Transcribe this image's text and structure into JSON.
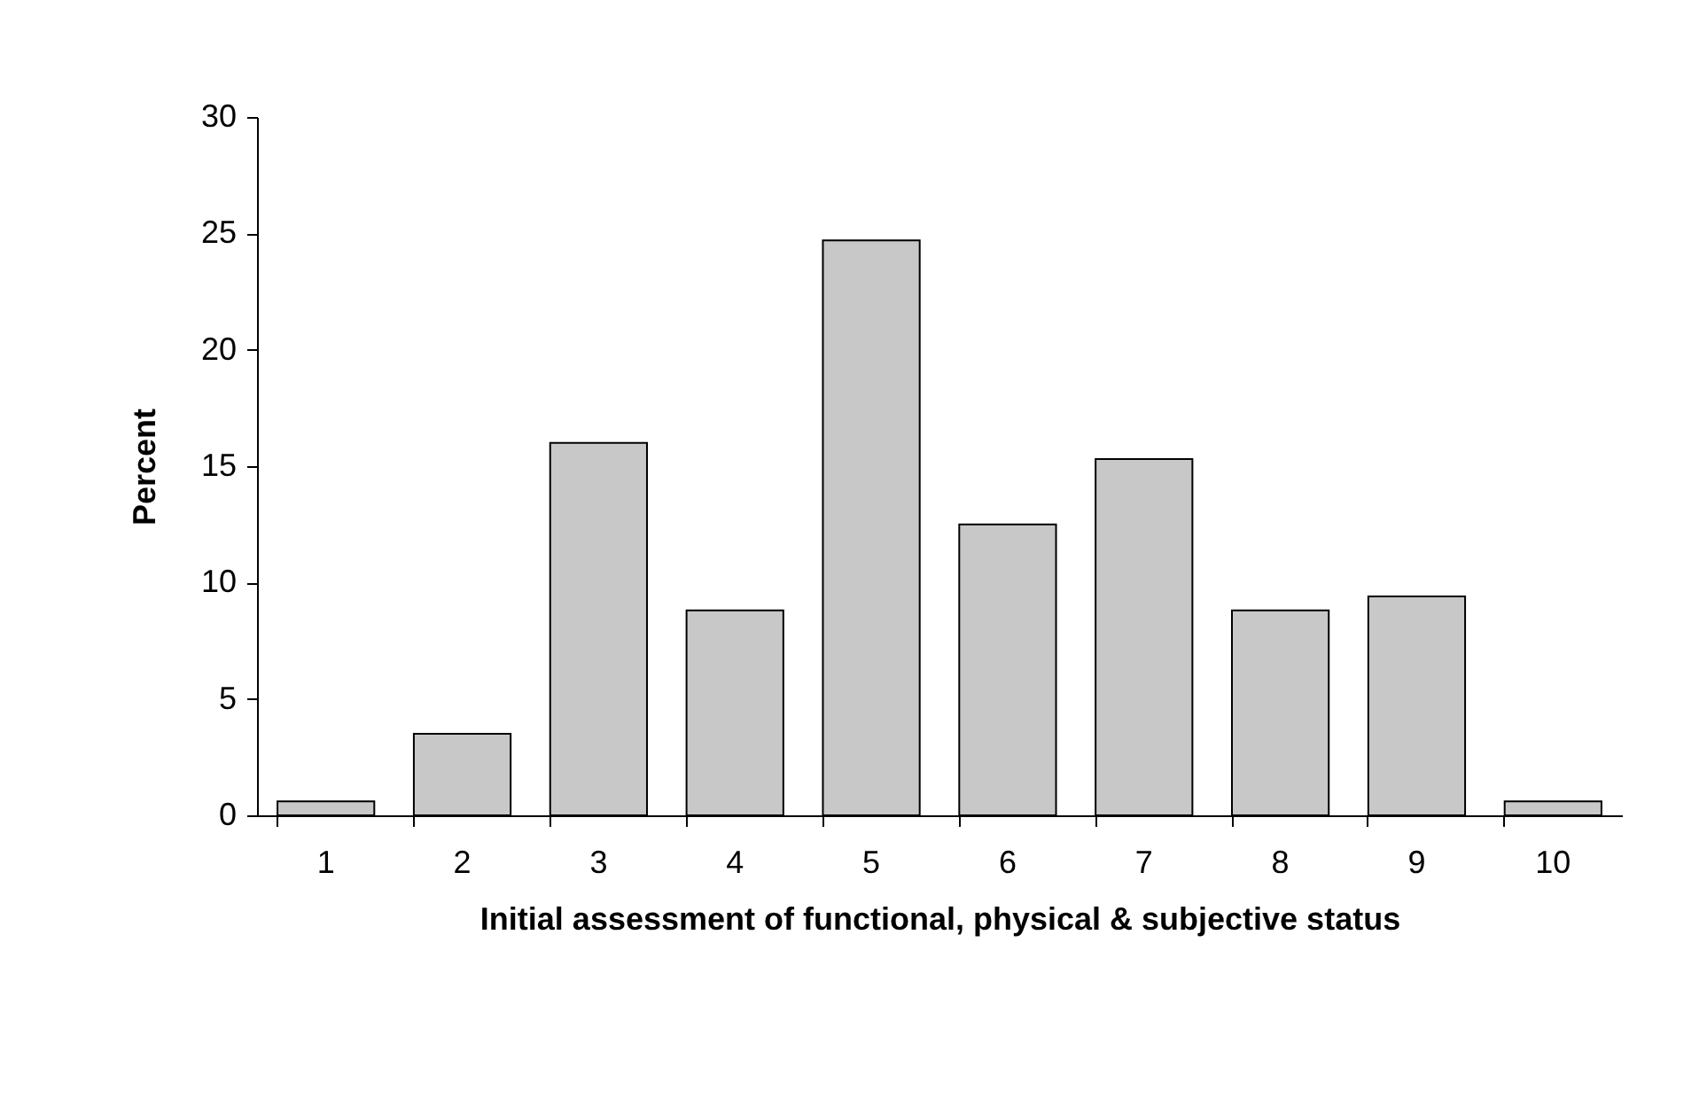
{
  "chart_data": {
    "type": "bar",
    "xlabel": "Initial assessment of functional, physical & subjective status",
    "ylabel": "Percent",
    "categories": [
      "1",
      "2",
      "3",
      "4",
      "5",
      "6",
      "7",
      "8",
      "9",
      "10"
    ],
    "values": [
      0.6,
      3.5,
      16.0,
      8.8,
      24.7,
      12.5,
      15.3,
      8.8,
      9.4,
      0.6
    ],
    "color": "#c8c8c8",
    "ylim": [
      0,
      30
    ],
    "yticks": [
      0,
      5,
      10,
      15,
      20,
      25,
      30
    ],
    "grid": false
  }
}
